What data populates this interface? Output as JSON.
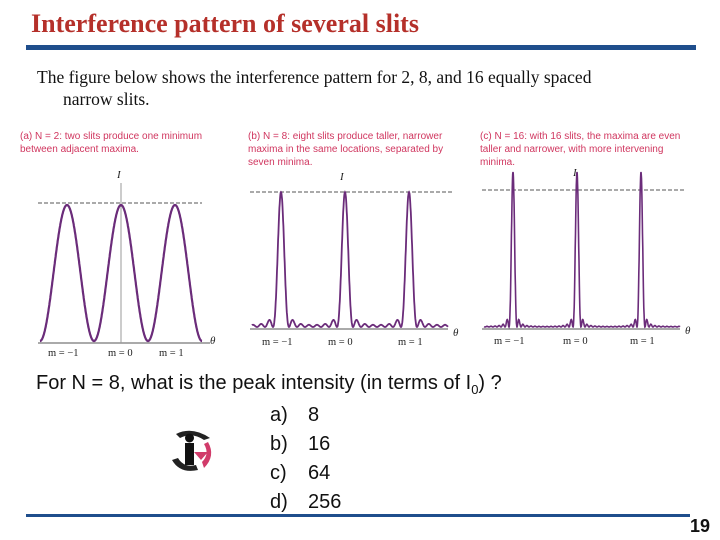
{
  "slide": {
    "title": "Interference pattern of several slits",
    "intro_line1": "The figure below shows the interference pattern for 2, 8, and 16 equally spaced",
    "intro_line2": "narrow slits.",
    "page_number": "19"
  },
  "figures": [
    {
      "tag": "(a)",
      "caption_line1": "N = 2: two slits produce one minimum",
      "caption_line2": "between adjacent maxima.",
      "caption_line3": "",
      "peak_label": "I",
      "axis_label": "θ",
      "ticks": [
        "m = −1",
        "m = 0",
        "m = 1"
      ]
    },
    {
      "tag": "(b)",
      "caption_line1": "N = 8: eight slits produce taller, narrower",
      "caption_line2": "maxima in the same locations, separated by",
      "caption_line3": "seven minima.",
      "peak_label": "I",
      "axis_label": "θ",
      "ticks": [
        "m = −1",
        "m = 0",
        "m = 1"
      ]
    },
    {
      "tag": "(c)",
      "caption_line1": "N = 16: with 16 slits, the maxima are even",
      "caption_line2": "taller and narrower, with more intervening",
      "caption_line3": "minima.",
      "peak_label": "I",
      "axis_label": "θ",
      "ticks": [
        "m = −1",
        "m = 0",
        "m = 1"
      ]
    }
  ],
  "question": {
    "prefix": "For N = 8, what is the peak intensity (in terms of I",
    "subscript": "0",
    "suffix": ") ?",
    "choices": [
      {
        "key": "a)",
        "text": "8"
      },
      {
        "key": "b)",
        "text": "16"
      },
      {
        "key": "c)",
        "text": "64"
      },
      {
        "key": "d)",
        "text": "256"
      }
    ]
  },
  "icons": {
    "clicker": "iclicker-logo-icon"
  },
  "colors": {
    "title": "#b5302a",
    "rule": "#1f4e8c",
    "curve": "#6b2c7a",
    "caption": "#d0365f"
  }
}
